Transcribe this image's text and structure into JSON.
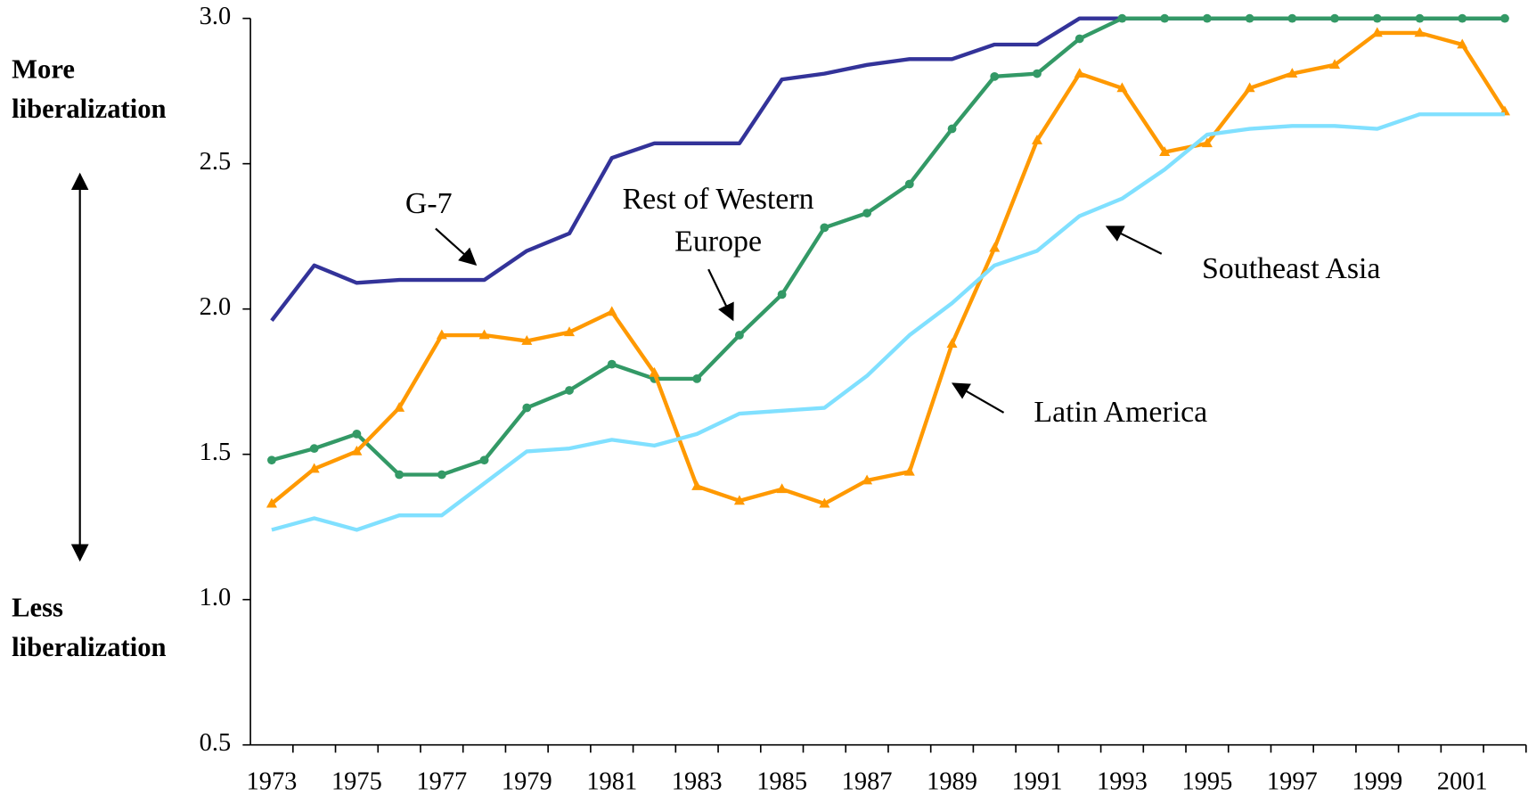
{
  "chart_data": {
    "type": "line",
    "categories": [
      "1973",
      null,
      "1975",
      null,
      "1977",
      null,
      "1979",
      null,
      "1981",
      null,
      "1983",
      null,
      "1985",
      null,
      "1987",
      null,
      "1989",
      null,
      "1991",
      null,
      "1993",
      null,
      "1995",
      null,
      "1997",
      null,
      "1999",
      null,
      "2001",
      null
    ],
    "ylim": [
      0.5,
      3.0
    ],
    "yticks": [
      0.5,
      {
        "value": 1.0,
        "label": "1.0"
      },
      1.5,
      {
        "value": 2.0,
        "label": "2.0"
      },
      2.5,
      {
        "value": 3.0,
        "label": "3.0"
      }
    ],
    "series": [
      {
        "name": "G-7",
        "color": "#333399",
        "values": [
          1.96,
          2.15,
          2.09,
          2.1,
          2.1,
          2.1,
          2.2,
          2.26,
          2.52,
          2.57,
          2.57,
          2.57,
          2.79,
          2.81,
          2.84,
          2.86,
          2.86,
          2.91,
          2.91,
          3.0,
          3.0,
          3.0,
          3.0,
          3.0,
          3.0,
          3.0,
          3.0,
          3.0,
          3.0,
          3.0
        ]
      },
      {
        "name": "Rest of Western Europe",
        "color": "#339966",
        "marker": "circle",
        "values": [
          1.48,
          1.52,
          1.57,
          1.43,
          1.43,
          1.48,
          1.66,
          1.72,
          1.81,
          1.76,
          1.76,
          1.91,
          2.05,
          2.28,
          2.33,
          2.43,
          2.62,
          2.8,
          2.81,
          2.93,
          3.0,
          3.0,
          3.0,
          3.0,
          3.0,
          3.0,
          3.0,
          3.0,
          3.0,
          3.0
        ]
      },
      {
        "name": "Latin America",
        "color": "#ff9900",
        "marker": "triangle",
        "values": [
          1.33,
          1.45,
          1.51,
          1.66,
          1.91,
          1.91,
          1.89,
          1.92,
          1.99,
          1.78,
          1.39,
          1.34,
          1.38,
          1.33,
          1.41,
          1.44,
          1.88,
          2.21,
          2.58,
          2.81,
          2.76,
          2.54,
          2.57,
          2.76,
          2.81,
          2.84,
          2.95,
          2.95,
          2.91,
          2.68
        ]
      },
      {
        "name": "Southeast Asia",
        "color": "#80e0ff",
        "values": [
          1.24,
          1.28,
          1.24,
          1.29,
          1.29,
          1.4,
          1.51,
          1.52,
          1.55,
          1.53,
          1.57,
          1.64,
          1.65,
          1.66,
          1.77,
          1.91,
          2.02,
          2.15,
          2.2,
          2.32,
          2.38,
          2.48,
          2.6,
          2.62,
          2.63,
          2.63,
          2.62,
          2.67,
          2.67,
          2.67
        ]
      }
    ],
    "annotations": [
      [
        "G-7"
      ],
      [
        "Rest of Western",
        "Europe"
      ],
      [
        "Latin America"
      ],
      [
        "Southeast Asia"
      ]
    ],
    "axis_notes": [
      [
        "More",
        "liberalization"
      ],
      [
        "Less",
        "liberalization"
      ]
    ]
  }
}
